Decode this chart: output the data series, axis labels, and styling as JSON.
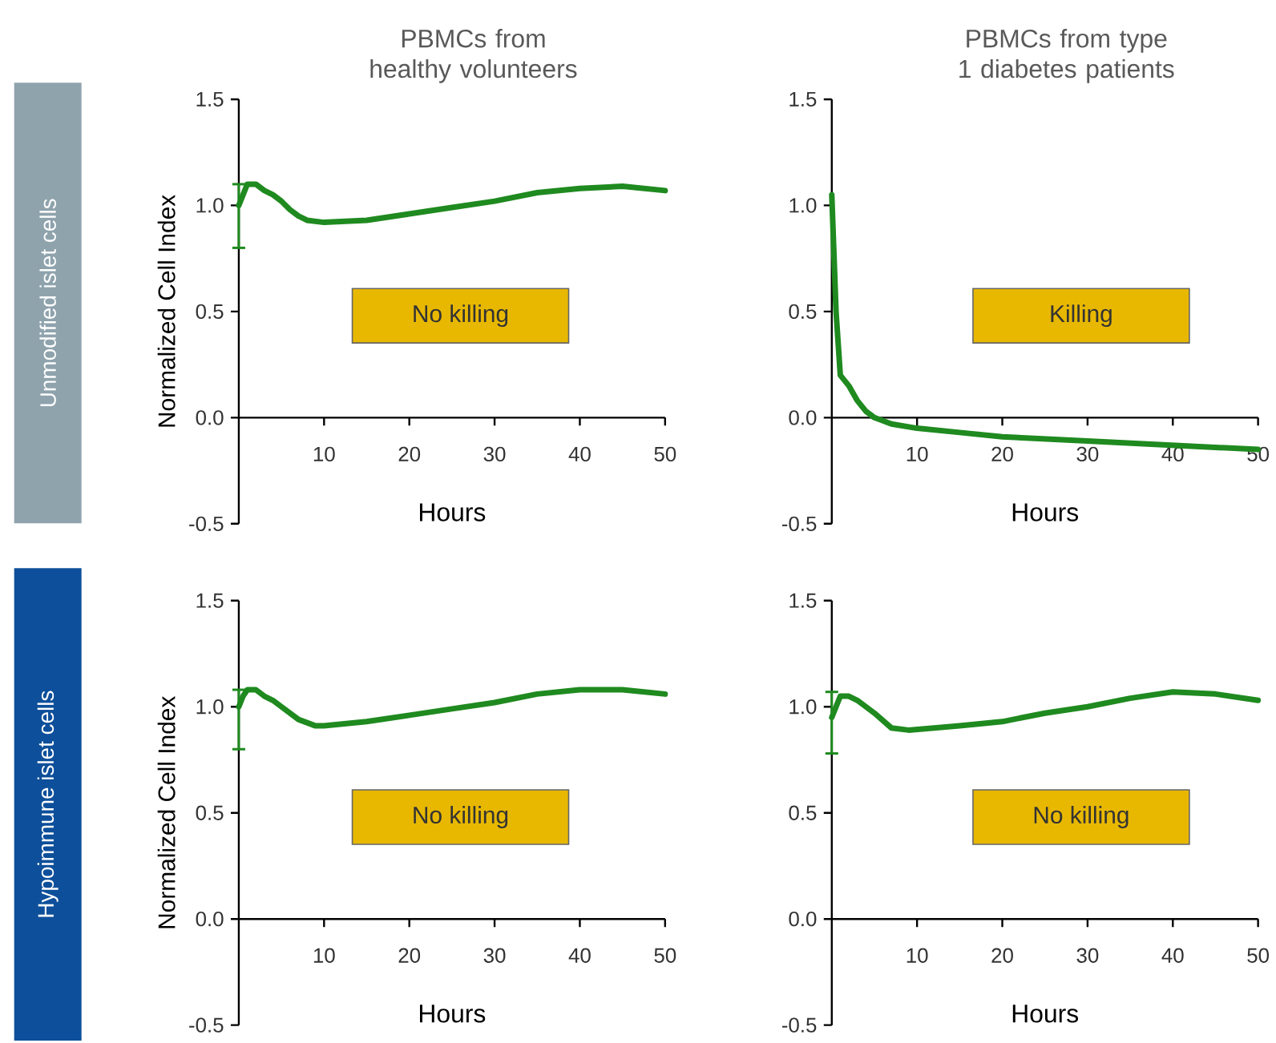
{
  "chart_data": [
    {
      "type": "line",
      "title": "PBMCs from healthy volunteers",
      "xlabel": "Hours",
      "ylabel": "Normalized Cell Index",
      "annotations": [
        "Unmodified islet cells",
        "No killing"
      ],
      "color": "#1f8a1f",
      "x": [
        0,
        0.5,
        1,
        2,
        3,
        4,
        5,
        6,
        7,
        8,
        10,
        15,
        20,
        25,
        30,
        35,
        40,
        45,
        50
      ],
      "values": [
        1.0,
        1.05,
        1.1,
        1.1,
        1.07,
        1.05,
        1.02,
        0.98,
        0.95,
        0.93,
        0.92,
        0.93,
        0.96,
        0.99,
        1.02,
        1.06,
        1.08,
        1.09,
        1.07
      ],
      "errors": [
        [
          0.8,
          1.1
        ],
        null,
        null,
        null,
        null,
        null,
        null,
        null,
        null,
        null,
        null,
        null,
        null,
        null,
        null,
        null,
        null,
        null,
        null
      ],
      "xlim": [
        0,
        50
      ],
      "xticks": [
        10,
        20,
        30,
        40,
        50
      ],
      "ylim": [
        -0.5,
        1.5
      ],
      "yticks": [
        {
          "value": -0.5,
          "label": "-0.5"
        },
        {
          "value": 0,
          "label": "0.0"
        },
        {
          "value": 0.5,
          "label": "0.5"
        },
        {
          "value": 1,
          "label": "1.0"
        },
        {
          "value": 1.5,
          "label": "1.5"
        }
      ]
    },
    {
      "type": "line",
      "title": "PBMCs from type 1 diabetes patients",
      "xlabel": "Hours",
      "annotations": [
        "Killing"
      ],
      "color": "#1f8a1f",
      "x": [
        0,
        0.5,
        1,
        2,
        3,
        4,
        5,
        7,
        10,
        15,
        20,
        30,
        40,
        50
      ],
      "values": [
        1.05,
        0.5,
        0.2,
        0.15,
        0.08,
        0.03,
        0.0,
        -0.03,
        -0.05,
        -0.07,
        -0.09,
        -0.11,
        -0.13,
        -0.15
      ],
      "xlim": [
        0,
        50
      ],
      "xticks": [
        10,
        20,
        30,
        40,
        50
      ],
      "ylim": [
        -0.5,
        1.5
      ],
      "yticks": [
        {
          "value": -0.5,
          "label": "-0.5"
        },
        {
          "value": 0,
          "label": "0.0"
        },
        {
          "value": 0.5,
          "label": "0.5"
        },
        {
          "value": 1,
          "label": "1.0"
        },
        {
          "value": 1.5,
          "label": "1.5"
        }
      ]
    },
    {
      "type": "line",
      "xlabel": "Hours",
      "ylabel": "Normalized Cell Index",
      "annotations": [
        "Hypoimmune islet cells",
        "No killing"
      ],
      "color": "#1f8a1f",
      "x": [
        0,
        0.5,
        1,
        2,
        3,
        4,
        5,
        7,
        9,
        10,
        15,
        20,
        25,
        30,
        35,
        40,
        45,
        50
      ],
      "values": [
        1.0,
        1.05,
        1.08,
        1.08,
        1.05,
        1.03,
        1.0,
        0.94,
        0.91,
        0.91,
        0.93,
        0.96,
        0.99,
        1.02,
        1.06,
        1.08,
        1.08,
        1.06
      ],
      "errors": [
        [
          0.8,
          1.08
        ],
        null,
        null,
        null,
        null,
        null,
        null,
        null,
        null,
        null,
        null,
        null,
        null,
        null,
        null,
        null,
        null,
        null
      ],
      "xlim": [
        0,
        50
      ],
      "xticks": [
        10,
        20,
        30,
        40,
        50
      ],
      "ylim": [
        -0.5,
        1.5
      ],
      "yticks": [
        {
          "value": -0.5,
          "label": "-0.5"
        },
        {
          "value": 0,
          "label": "0.0"
        },
        {
          "value": 0.5,
          "label": "0.5"
        },
        {
          "value": 1,
          "label": "1.0"
        },
        {
          "value": 1.5,
          "label": "1.5"
        }
      ]
    },
    {
      "type": "line",
      "xlabel": "Hours",
      "annotations": [
        "No killing"
      ],
      "color": "#1f8a1f",
      "x": [
        0,
        0.5,
        1,
        2,
        3,
        5,
        7,
        9,
        12,
        15,
        20,
        25,
        30,
        35,
        40,
        45,
        50
      ],
      "values": [
        0.95,
        1.0,
        1.05,
        1.05,
        1.03,
        0.97,
        0.9,
        0.89,
        0.9,
        0.91,
        0.93,
        0.97,
        1.0,
        1.04,
        1.07,
        1.06,
        1.03
      ],
      "errors": [
        [
          0.78,
          1.07
        ],
        null,
        null,
        null,
        null,
        null,
        null,
        null,
        null,
        null,
        null,
        null,
        null,
        null,
        null,
        null,
        null
      ],
      "xlim": [
        0,
        50
      ],
      "xticks": [
        10,
        20,
        30,
        40,
        50
      ],
      "ylim": [
        -0.5,
        1.5
      ],
      "yticks": [
        {
          "value": -0.5,
          "label": "-0.5"
        },
        {
          "value": 0,
          "label": "0.0"
        },
        {
          "value": 0.5,
          "label": "0.5"
        },
        {
          "value": 1,
          "label": "1.0"
        },
        {
          "value": 1.5,
          "label": "1.5"
        }
      ]
    }
  ]
}
